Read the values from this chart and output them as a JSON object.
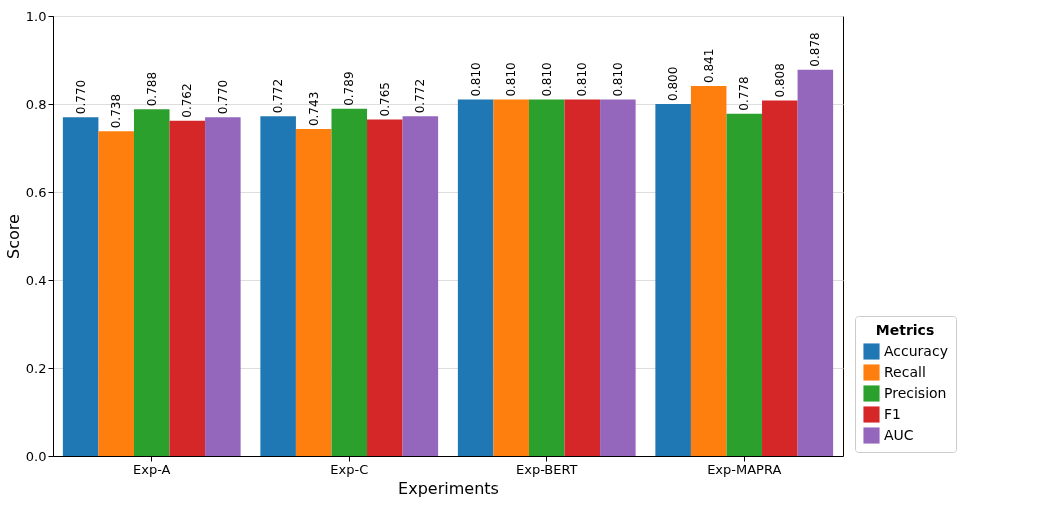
{
  "chart_data": {
    "type": "bar",
    "xlabel": "Experiments",
    "ylabel": "Score",
    "legend_title": "Metrics",
    "legend": "bottom right",
    "grid": "y",
    "categories": [
      "Exp-A",
      "Exp-C",
      "Exp-BERT",
      "Exp-MAPRA"
    ],
    "ylim": [
      0,
      1
    ],
    "yticks": [
      {
        "value": 0,
        "label": "0.0"
      },
      {
        "value": 0.2,
        "label": "0.2"
      },
      {
        "value": 0.4,
        "label": "0.4"
      },
      {
        "value": 0.6,
        "label": "0.6"
      },
      {
        "value": 0.8,
        "label": "0.8"
      },
      {
        "value": 1,
        "label": "1.0"
      }
    ],
    "series": [
      {
        "name": "Accuracy",
        "color": "#1f77b4",
        "values": [
          0.77,
          0.772,
          0.81,
          0.8
        ],
        "value_labels": [
          "0.770",
          "0.772",
          "0.810",
          "0.800"
        ]
      },
      {
        "name": "Recall",
        "color": "#ff7f0e",
        "values": [
          0.738,
          0.743,
          0.81,
          0.841
        ],
        "value_labels": [
          "0.738",
          "0.743",
          "0.810",
          "0.841"
        ]
      },
      {
        "name": "Precision",
        "color": "#2ca02c",
        "values": [
          0.788,
          0.789,
          0.81,
          0.778
        ],
        "value_labels": [
          "0.788",
          "0.789",
          "0.810",
          "0.778"
        ]
      },
      {
        "name": "F1",
        "color": "#d62728",
        "values": [
          0.762,
          0.765,
          0.81,
          0.808
        ],
        "value_labels": [
          "0.762",
          "0.765",
          "0.810",
          "0.808"
        ]
      },
      {
        "name": "AUC",
        "color": "#9467bd",
        "values": [
          0.77,
          0.772,
          0.81,
          0.878
        ],
        "value_labels": [
          "0.770",
          "0.772",
          "0.810",
          "0.878"
        ]
      }
    ]
  }
}
